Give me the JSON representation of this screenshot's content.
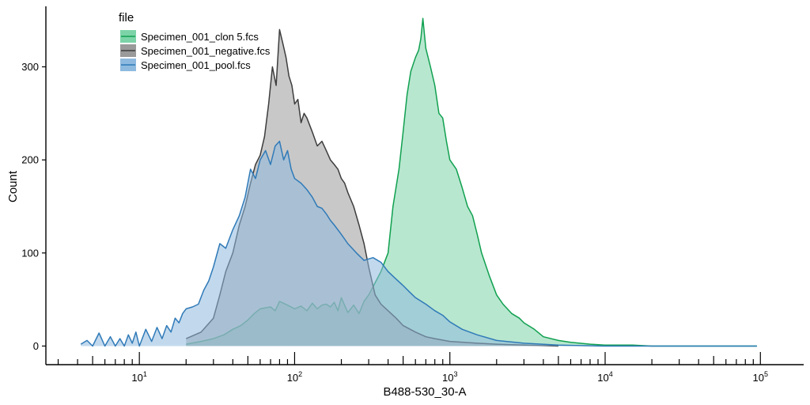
{
  "chart_data": {
    "type": "area",
    "title": "",
    "xlabel": "B488-530_30-A",
    "ylabel": "Count",
    "x_scale": "log10",
    "xlim": [
      2.5,
      190000
    ],
    "ylim": [
      -20,
      365
    ],
    "y_ticks": [
      0,
      100,
      200,
      300
    ],
    "y_tick_labels": [
      "0",
      "100",
      "200",
      "300"
    ],
    "x_major_ticks": [
      10,
      100,
      1000,
      10000,
      100000
    ],
    "x_major_tick_labels": [
      {
        "base": "10",
        "exp": "1"
      },
      {
        "base": "10",
        "exp": "2"
      },
      {
        "base": "10",
        "exp": "3"
      },
      {
        "base": "10",
        "exp": "4"
      },
      {
        "base": "10",
        "exp": "5"
      }
    ],
    "grid": false,
    "legend": {
      "title": "file",
      "position": "top-left"
    },
    "series": [
      {
        "name": "Specimen_001_clon 5.fcs",
        "line_color": "#10a050",
        "fill_color": "#7dd3a8",
        "x": [
          20,
          25,
          30,
          35,
          40,
          45,
          50,
          55,
          60,
          70,
          75,
          80,
          90,
          100,
          110,
          120,
          130,
          140,
          150,
          160,
          170,
          180,
          190,
          200,
          220,
          240,
          260,
          280,
          300,
          330,
          360,
          400,
          430,
          470,
          500,
          530,
          560,
          600,
          630,
          650,
          670,
          700,
          750,
          800,
          850,
          900,
          950,
          1000,
          1100,
          1200,
          1300,
          1400,
          1500,
          1600,
          1800,
          2000,
          2200,
          2500,
          2800,
          3000,
          3500,
          4000,
          5000,
          6000,
          8000,
          10000,
          15000,
          20000,
          50000,
          95000
        ],
        "y": [
          2,
          5,
          8,
          12,
          18,
          22,
          28,
          35,
          40,
          42,
          38,
          48,
          44,
          40,
          43,
          38,
          46,
          40,
          44,
          45,
          42,
          47,
          38,
          52,
          36,
          44,
          35,
          48,
          55,
          68,
          80,
          100,
          150,
          190,
          230,
          270,
          295,
          310,
          318,
          330,
          352,
          320,
          300,
          280,
          250,
          245,
          220,
          200,
          190,
          170,
          150,
          140,
          120,
          100,
          75,
          55,
          45,
          35,
          30,
          25,
          18,
          10,
          6,
          4,
          2,
          1,
          1,
          0,
          0,
          0
        ]
      },
      {
        "name": "Specimen_001_negative.fcs",
        "line_color": "#3d3d3d",
        "fill_color": "#9a9a9a",
        "x": [
          20,
          25,
          30,
          33,
          36,
          40,
          44,
          48,
          52,
          56,
          60,
          64,
          68,
          72,
          76,
          80,
          84,
          88,
          92,
          96,
          100,
          105,
          110,
          115,
          120,
          130,
          140,
          150,
          160,
          170,
          180,
          190,
          200,
          210,
          220,
          240,
          260,
          280,
          300,
          330,
          360,
          400,
          450,
          500,
          600,
          700,
          800,
          1000,
          1500,
          2000,
          5000
        ],
        "y": [
          8,
          15,
          30,
          55,
          80,
          100,
          130,
          150,
          175,
          195,
          205,
          225,
          260,
          300,
          280,
          340,
          325,
          310,
          290,
          280,
          260,
          265,
          240,
          250,
          245,
          230,
          215,
          220,
          210,
          200,
          195,
          190,
          180,
          175,
          165,
          150,
          130,
          110,
          85,
          55,
          45,
          38,
          30,
          22,
          15,
          10,
          8,
          5,
          3,
          2,
          0
        ]
      },
      {
        "name": "Specimen_001_pool.fcs",
        "line_color": "#2f7ab8",
        "fill_color": "#8fbadf",
        "x": [
          4.2,
          4.6,
          5,
          5.5,
          6,
          6.5,
          7,
          7.5,
          8,
          8.5,
          9,
          9.5,
          10,
          11,
          12,
          13,
          14,
          15,
          16,
          17,
          18,
          19,
          20,
          22,
          24,
          26,
          28,
          30,
          33,
          36,
          40,
          44,
          48,
          52,
          56,
          60,
          65,
          70,
          75,
          80,
          85,
          90,
          95,
          100,
          110,
          120,
          130,
          140,
          150,
          160,
          170,
          180,
          200,
          220,
          250,
          280,
          320,
          360,
          400,
          450,
          500,
          550,
          600,
          700,
          800,
          900,
          1000,
          1200,
          1500,
          2000,
          3000,
          5000,
          10000,
          20000,
          50000,
          95000
        ],
        "y": [
          2,
          6,
          0,
          14,
          0,
          10,
          0,
          8,
          0,
          12,
          3,
          15,
          0,
          18,
          5,
          20,
          8,
          22,
          15,
          30,
          25,
          35,
          40,
          42,
          45,
          60,
          70,
          85,
          110,
          105,
          125,
          140,
          160,
          190,
          180,
          200,
          210,
          195,
          215,
          220,
          200,
          210,
          190,
          180,
          175,
          168,
          160,
          150,
          148,
          142,
          135,
          130,
          120,
          110,
          100,
          92,
          95,
          90,
          80,
          72,
          65,
          58,
          52,
          45,
          38,
          33,
          26,
          18,
          12,
          6,
          3,
          1,
          0,
          0,
          0,
          0
        ]
      }
    ]
  }
}
